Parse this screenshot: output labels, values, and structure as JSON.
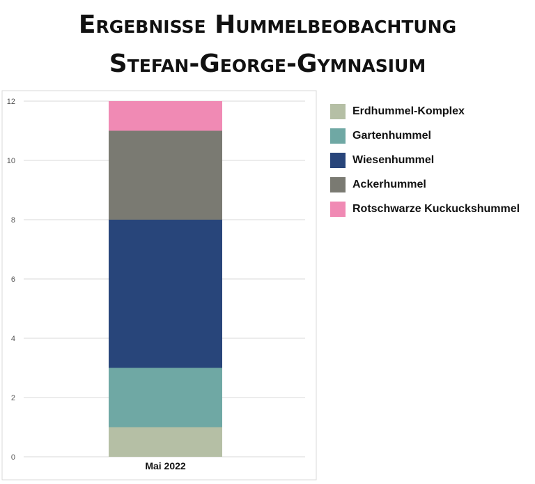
{
  "title": {
    "line1": "Ergebnisse Hummelbeobachtung",
    "line2": "Stefan-George-Gymnasium"
  },
  "chart_data": {
    "type": "bar",
    "stacked": true,
    "categories": [
      "Mai 2022"
    ],
    "series": [
      {
        "name": "Erdhummel-Komplex",
        "values": [
          1
        ],
        "color": "#b5bfa5"
      },
      {
        "name": "Gartenhummel",
        "values": [
          2
        ],
        "color": "#6fa8a4"
      },
      {
        "name": "Wiesenhummel",
        "values": [
          5
        ],
        "color": "#28457a"
      },
      {
        "name": "Ackerhummel",
        "values": [
          3
        ],
        "color": "#7a7a72"
      },
      {
        "name": "Rotschwarze Kuckuckshummel",
        "values": [
          1
        ],
        "color": "#f08ab4"
      }
    ],
    "yticks": [
      "0",
      "2",
      "4",
      "6",
      "8",
      "10",
      "12"
    ],
    "ylim": [
      0,
      12
    ],
    "grid": true,
    "legend_position": "right"
  }
}
